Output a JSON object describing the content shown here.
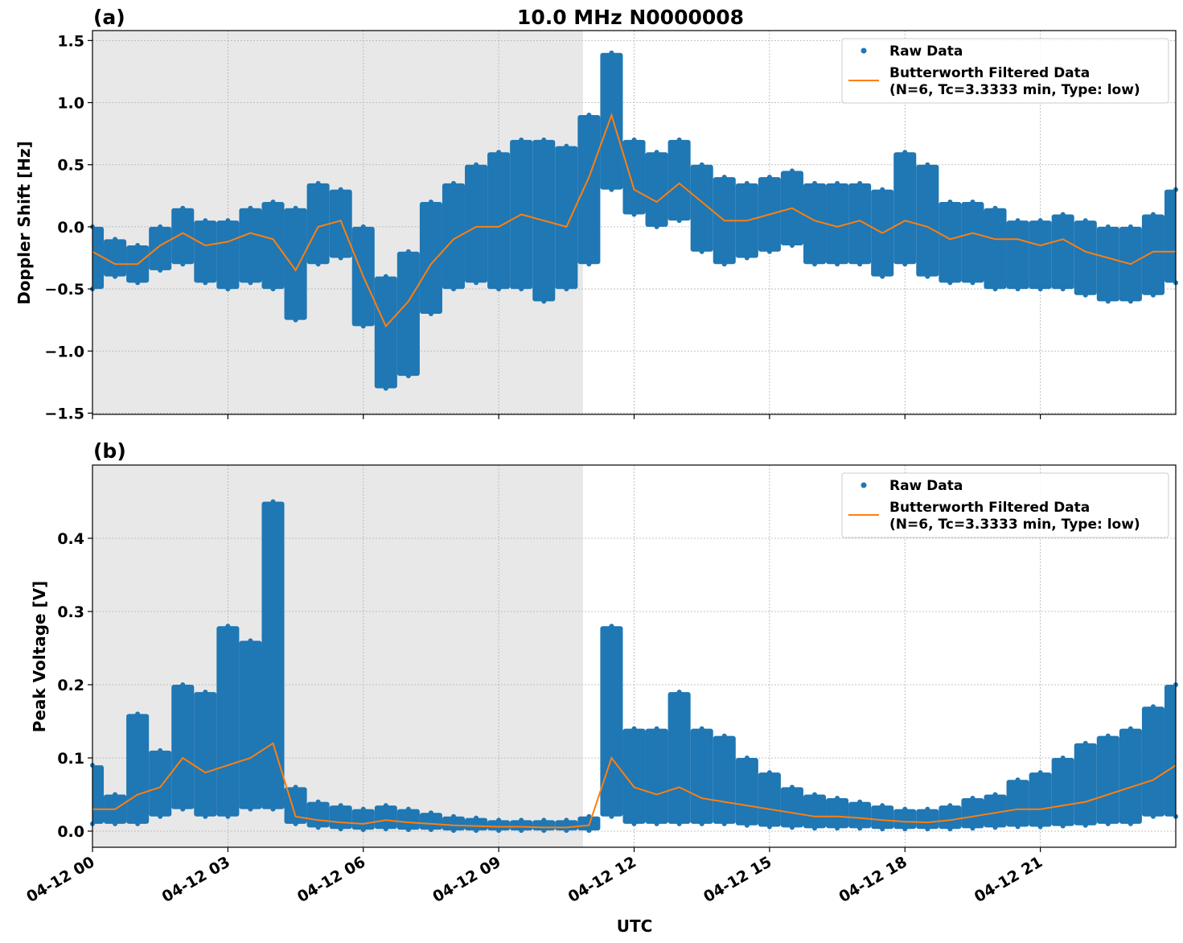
{
  "title": "10.0 MHz N0000008",
  "xlabel": "UTC",
  "colors": {
    "raw": "#1f77b4",
    "filtered": "#ff7f0e",
    "shade": "#e8e8e8",
    "grid": "#b0b0b0"
  },
  "x_ticks": [
    "04-12 00",
    "04-12 03",
    "04-12 06",
    "04-12 09",
    "04-12 12",
    "04-12 15",
    "04-12 18",
    "04-12 21"
  ],
  "x_tick_times": [
    "04-12 00:00",
    "04-12 03:00",
    "04-12 06:00",
    "04-12 09:00",
    "04-12 12:00",
    "04-12 15:00",
    "04-12 18:00",
    "04-12 21:00"
  ],
  "xlim": [
    "04-12 00:00",
    "04-13 00:00"
  ],
  "shaded_region": [
    "04-12 00:00",
    "04-12 10:52"
  ],
  "legend": {
    "raw": "Raw Data",
    "filtered_line1": "Butterworth Filtered Data",
    "filtered_line2": "(N=6, Tc=3.3333 min, Type: low)",
    "placement": "top-right"
  },
  "chart_data": [
    {
      "type": "scatter+line",
      "panel_label": "(a)",
      "ylabel": "Doppler Shift [Hz]",
      "ylim": [
        -1.51,
        1.58
      ],
      "y_ticks": [
        1.5,
        1.0,
        0.5,
        0.0,
        -0.5,
        -1.0,
        -1.5
      ],
      "y_tick_labels": [
        "1.5",
        "1.0",
        "0.5",
        "0.0",
        "−0.5",
        "−1.0",
        "−1.5"
      ],
      "grid": true,
      "x": [
        "00:00",
        "00:30",
        "01:00",
        "01:30",
        "02:00",
        "02:30",
        "03:00",
        "03:30",
        "04:00",
        "04:30",
        "05:00",
        "05:30",
        "06:00",
        "06:30",
        "07:00",
        "07:30",
        "08:00",
        "08:30",
        "09:00",
        "09:30",
        "10:00",
        "10:30",
        "11:00",
        "11:30",
        "12:00",
        "12:30",
        "13:00",
        "13:30",
        "14:00",
        "14:30",
        "15:00",
        "15:30",
        "16:00",
        "16:30",
        "17:00",
        "17:30",
        "18:00",
        "18:30",
        "19:00",
        "19:30",
        "20:00",
        "20:30",
        "21:00",
        "21:30",
        "22:00",
        "22:30",
        "23:00",
        "23:30",
        "24:00"
      ],
      "series": [
        {
          "name": "Butterworth Filtered Data",
          "values": [
            -0.2,
            -0.3,
            -0.3,
            -0.15,
            -0.05,
            -0.15,
            -0.12,
            -0.05,
            -0.1,
            -0.35,
            0.0,
            0.05,
            -0.4,
            -0.8,
            -0.6,
            -0.3,
            -0.1,
            0.0,
            0.0,
            0.1,
            0.05,
            0.0,
            0.4,
            0.9,
            0.3,
            0.2,
            0.35,
            0.2,
            0.05,
            0.05,
            0.1,
            0.15,
            0.05,
            0.0,
            0.05,
            -0.05,
            0.05,
            0.0,
            -0.1,
            -0.05,
            -0.1,
            -0.1,
            -0.15,
            -0.1,
            -0.2,
            -0.25,
            -0.3,
            -0.2,
            -0.2
          ]
        },
        {
          "name": "Raw Data",
          "min": [
            -0.5,
            -0.4,
            -0.45,
            -0.35,
            -0.3,
            -0.45,
            -0.5,
            -0.45,
            -0.5,
            -0.75,
            -0.3,
            -0.25,
            -0.8,
            -1.3,
            -1.2,
            -0.7,
            -0.5,
            -0.45,
            -0.5,
            -0.5,
            -0.6,
            -0.5,
            -0.3,
            0.3,
            0.1,
            0.0,
            0.05,
            -0.2,
            -0.3,
            -0.25,
            -0.2,
            -0.15,
            -0.3,
            -0.3,
            -0.3,
            -0.4,
            -0.3,
            -0.4,
            -0.45,
            -0.45,
            -0.5,
            -0.5,
            -0.5,
            -0.5,
            -0.55,
            -0.6,
            -0.6,
            -0.55,
            -0.45
          ],
          "max": [
            0.0,
            -0.1,
            -0.15,
            0.0,
            0.15,
            0.05,
            0.05,
            0.15,
            0.2,
            0.15,
            0.35,
            0.3,
            0.0,
            -0.4,
            -0.2,
            0.2,
            0.35,
            0.5,
            0.6,
            0.7,
            0.7,
            0.65,
            0.9,
            1.4,
            0.7,
            0.6,
            0.7,
            0.5,
            0.4,
            0.35,
            0.4,
            0.45,
            0.35,
            0.35,
            0.35,
            0.3,
            0.6,
            0.5,
            0.2,
            0.2,
            0.15,
            0.05,
            0.05,
            0.1,
            0.05,
            0.0,
            0.0,
            0.1,
            0.3
          ]
        }
      ]
    },
    {
      "type": "scatter+line",
      "panel_label": "(b)",
      "ylabel": "Peak Voltage [V]",
      "ylim": [
        -0.022,
        0.5
      ],
      "y_ticks": [
        0.0,
        0.1,
        0.2,
        0.3,
        0.4
      ],
      "y_tick_labels": [
        "0.0",
        "0.1",
        "0.2",
        "0.3",
        "0.4"
      ],
      "grid": true,
      "x": [
        "00:00",
        "00:30",
        "01:00",
        "01:30",
        "02:00",
        "02:30",
        "03:00",
        "03:30",
        "04:00",
        "04:30",
        "05:00",
        "05:30",
        "06:00",
        "06:30",
        "07:00",
        "07:30",
        "08:00",
        "08:30",
        "09:00",
        "09:30",
        "10:00",
        "10:30",
        "11:00",
        "11:30",
        "12:00",
        "12:30",
        "13:00",
        "13:30",
        "14:00",
        "14:30",
        "15:00",
        "15:30",
        "16:00",
        "16:30",
        "17:00",
        "17:30",
        "18:00",
        "18:30",
        "19:00",
        "19:30",
        "20:00",
        "20:30",
        "21:00",
        "21:30",
        "22:00",
        "22:30",
        "23:00",
        "23:30",
        "24:00"
      ],
      "series": [
        {
          "name": "Butterworth Filtered Data",
          "values": [
            0.03,
            0.03,
            0.05,
            0.06,
            0.1,
            0.08,
            0.09,
            0.1,
            0.12,
            0.02,
            0.015,
            0.012,
            0.01,
            0.015,
            0.012,
            0.01,
            0.008,
            0.007,
            0.006,
            0.006,
            0.005,
            0.005,
            0.008,
            0.1,
            0.06,
            0.05,
            0.06,
            0.045,
            0.04,
            0.035,
            0.03,
            0.025,
            0.02,
            0.02,
            0.018,
            0.015,
            0.013,
            0.012,
            0.015,
            0.02,
            0.025,
            0.03,
            0.03,
            0.035,
            0.04,
            0.05,
            0.06,
            0.07,
            0.09
          ]
        },
        {
          "name": "Raw Data",
          "min": [
            0.01,
            0.01,
            0.01,
            0.02,
            0.03,
            0.02,
            0.02,
            0.03,
            0.03,
            0.01,
            0.005,
            0.003,
            0.002,
            0.003,
            0.002,
            0.002,
            0.001,
            0.001,
            0.001,
            0.001,
            0.001,
            0.001,
            0.001,
            0.02,
            0.01,
            0.01,
            0.01,
            0.01,
            0.01,
            0.008,
            0.006,
            0.005,
            0.004,
            0.004,
            0.004,
            0.003,
            0.003,
            0.003,
            0.003,
            0.004,
            0.005,
            0.006,
            0.006,
            0.007,
            0.008,
            0.01,
            0.01,
            0.02,
            0.02
          ],
          "max": [
            0.09,
            0.05,
            0.16,
            0.11,
            0.2,
            0.19,
            0.28,
            0.26,
            0.45,
            0.06,
            0.04,
            0.035,
            0.03,
            0.035,
            0.03,
            0.025,
            0.02,
            0.018,
            0.015,
            0.015,
            0.015,
            0.015,
            0.02,
            0.28,
            0.14,
            0.14,
            0.19,
            0.14,
            0.13,
            0.1,
            0.08,
            0.06,
            0.05,
            0.045,
            0.04,
            0.035,
            0.03,
            0.03,
            0.035,
            0.045,
            0.05,
            0.07,
            0.08,
            0.1,
            0.12,
            0.13,
            0.14,
            0.17,
            0.2
          ]
        }
      ]
    }
  ]
}
